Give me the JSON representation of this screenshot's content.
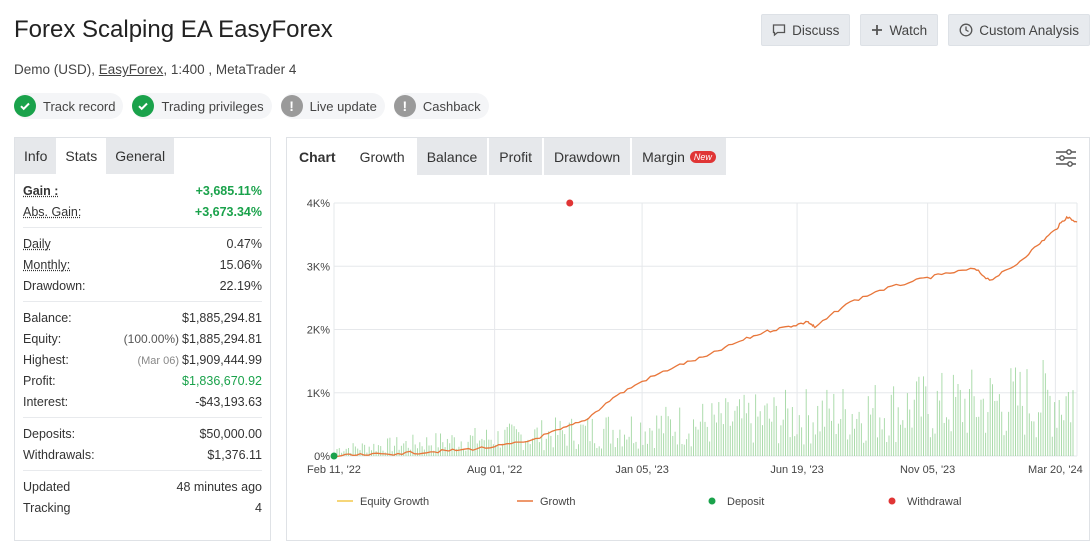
{
  "header": {
    "title": "Forex Scalping EA EasyForex",
    "account_type": "Demo (USD),",
    "broker": "EasyForex",
    "leverage_platform": ", 1:400 , MetaTrader 4"
  },
  "top_buttons": {
    "discuss": "Discuss",
    "watch": "Watch",
    "custom_analysis": "Custom Analysis"
  },
  "badges": [
    {
      "label": "Track record",
      "status": "ok"
    },
    {
      "label": "Trading privileges",
      "status": "ok"
    },
    {
      "label": "Live update",
      "status": "warn"
    },
    {
      "label": "Cashback",
      "status": "warn"
    }
  ],
  "left_tabs": [
    "Info",
    "Stats",
    "General"
  ],
  "stats": {
    "gain_label": "Gain :",
    "gain": "+3,685.11%",
    "abs_gain_label": "Abs. Gain:",
    "abs_gain": "+3,673.34%",
    "daily_label": "Daily",
    "daily": "0.47%",
    "monthly_label": "Monthly:",
    "monthly": "15.06%",
    "drawdown_label": "Drawdown:",
    "drawdown": "22.19%",
    "balance_label": "Balance:",
    "balance": "$1,885,294.81",
    "equity_label": "Equity:",
    "equity_pct": "(100.00%)",
    "equity": "$1,885,294.81",
    "highest_label": "Highest:",
    "highest_date": "(Mar 06)",
    "highest": "$1,909,444.99",
    "profit_label": "Profit:",
    "profit": "$1,836,670.92",
    "interest_label": "Interest:",
    "interest": "-$43,193.63",
    "deposits_label": "Deposits:",
    "deposits": "$50,000.00",
    "withdrawals_label": "Withdrawals:",
    "withdrawals": "$1,376.11",
    "updated_label": "Updated",
    "updated": "48 minutes ago",
    "tracking_label": "Tracking",
    "tracking": "4"
  },
  "chart_tabs": {
    "chart": "Chart",
    "growth": "Growth",
    "balance": "Balance",
    "profit": "Profit",
    "drawdown": "Drawdown",
    "margin": "Margin",
    "new": "New"
  },
  "colors": {
    "growth_line": "#e8763a",
    "equity_line": "#f2c94c",
    "bars": "#8fd08f",
    "deposit": "#1aa24b",
    "withdrawal": "#e03535",
    "positive": "#1aa24b"
  },
  "chart_data": {
    "type": "line",
    "ylim": [
      0,
      4000
    ],
    "yticks": [
      "0%",
      "1K%",
      "2K%",
      "3K%",
      "4K%"
    ],
    "xticks": [
      "Feb 11, '22",
      "Aug 01, '22",
      "Jan 05, '23",
      "Jun 19, '23",
      "Nov 05, '23",
      "Mar 20, '24"
    ],
    "x_range": [
      "2022-02-11",
      "2024-04-12"
    ],
    "series": [
      {
        "name": "Growth",
        "points": [
          [
            "2022-02-11",
            0
          ],
          [
            "2022-03-15",
            15
          ],
          [
            "2022-04-20",
            40
          ],
          [
            "2022-05-25",
            65
          ],
          [
            "2022-06-25",
            95
          ],
          [
            "2022-08-01",
            145
          ],
          [
            "2022-09-05",
            230
          ],
          [
            "2022-10-10",
            420
          ],
          [
            "2022-11-05",
            560
          ],
          [
            "2022-12-05",
            920
          ],
          [
            "2023-01-05",
            1180
          ],
          [
            "2023-02-10",
            1420
          ],
          [
            "2023-03-15",
            1580
          ],
          [
            "2023-04-15",
            1790
          ],
          [
            "2023-05-15",
            1960
          ],
          [
            "2023-06-10",
            2050
          ],
          [
            "2023-07-01",
            2120
          ],
          [
            "2023-07-08",
            2030
          ],
          [
            "2023-08-10",
            2400
          ],
          [
            "2023-09-15",
            2620
          ],
          [
            "2023-10-20",
            2760
          ],
          [
            "2023-11-20",
            2870
          ],
          [
            "2023-12-25",
            2960
          ],
          [
            "2024-01-10",
            2780
          ],
          [
            "2024-02-05",
            3000
          ],
          [
            "2024-03-01",
            3330
          ],
          [
            "2024-03-20",
            3580
          ],
          [
            "2024-04-01",
            3780
          ],
          [
            "2024-04-12",
            3700
          ]
        ]
      },
      {
        "name": "Equity Growth"
      }
    ],
    "deposits": [
      [
        "2022-02-11",
        0
      ]
    ],
    "withdrawals": [
      [
        "2022-10-20",
        4000
      ]
    ],
    "legend": [
      "Equity Growth",
      "Growth",
      "Deposit",
      "Withdrawal"
    ],
    "legend_position": "bottom",
    "grid": true
  }
}
